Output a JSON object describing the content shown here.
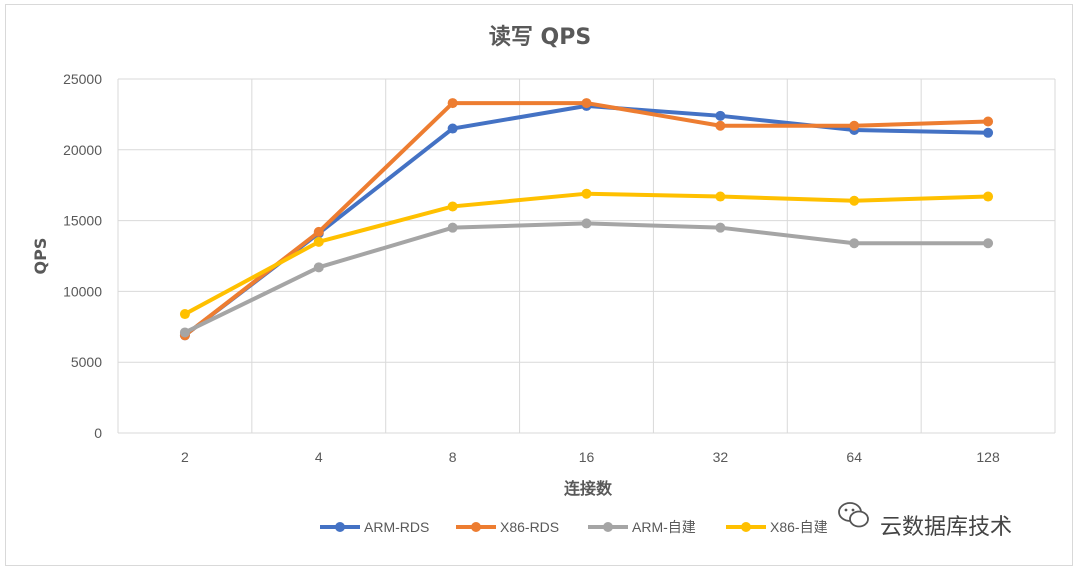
{
  "chart_data": {
    "type": "line",
    "title": "读写 QPS",
    "xlabel": "连接数",
    "ylabel": "QPS",
    "categories": [
      "2",
      "4",
      "8",
      "16",
      "32",
      "64",
      "128"
    ],
    "ylim": [
      0,
      25000
    ],
    "yticks": [
      0,
      5000,
      10000,
      15000,
      20000,
      25000
    ],
    "grid": true,
    "legend": "bottom",
    "series": [
      {
        "name": "ARM-RDS",
        "color": "#4472C4",
        "values": [
          6900,
          14100,
          21500,
          23100,
          22400,
          21400,
          21200
        ]
      },
      {
        "name": "X86-RDS",
        "color": "#ED7D31",
        "values": [
          6900,
          14200,
          23300,
          23300,
          21700,
          21700,
          22000
        ]
      },
      {
        "name": "ARM-自建",
        "color": "#A5A5A5",
        "values": [
          7100,
          11700,
          14500,
          14800,
          14500,
          13400,
          13400
        ]
      },
      {
        "name": "X86-自建",
        "color": "#FFC000",
        "values": [
          8400,
          13500,
          16000,
          16900,
          16700,
          16400,
          16700
        ]
      }
    ]
  },
  "watermark": {
    "text": "云数据库技术",
    "icon": "wechat-icon"
  }
}
